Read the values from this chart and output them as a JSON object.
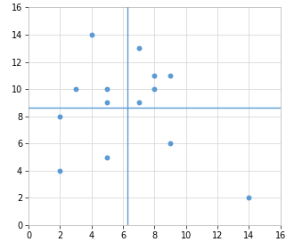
{
  "points": [
    [
      2,
      8
    ],
    [
      2,
      4
    ],
    [
      3,
      10
    ],
    [
      4,
      14
    ],
    [
      5,
      10
    ],
    [
      5,
      9
    ],
    [
      5,
      5
    ],
    [
      7,
      13
    ],
    [
      7,
      9
    ],
    [
      8,
      11
    ],
    [
      8,
      10
    ],
    [
      9,
      11
    ],
    [
      9,
      6
    ],
    [
      14,
      2
    ]
  ],
  "hline": 8.6,
  "vline": 6.3,
  "xlim": [
    0,
    16
  ],
  "ylim": [
    0,
    16
  ],
  "xticks": [
    0,
    2,
    4,
    6,
    8,
    10,
    12,
    14,
    16
  ],
  "yticks": [
    0,
    2,
    4,
    6,
    8,
    10,
    12,
    14,
    16
  ],
  "dot_color": "#5B9BD5",
  "line_color": "#5B9BD5",
  "grid_color": "#D9D9D9",
  "bg_color": "#FFFFFF",
  "dot_size": 18,
  "tick_fontsize": 7,
  "line_width": 1.0,
  "spine_color": "#BFBFBF"
}
